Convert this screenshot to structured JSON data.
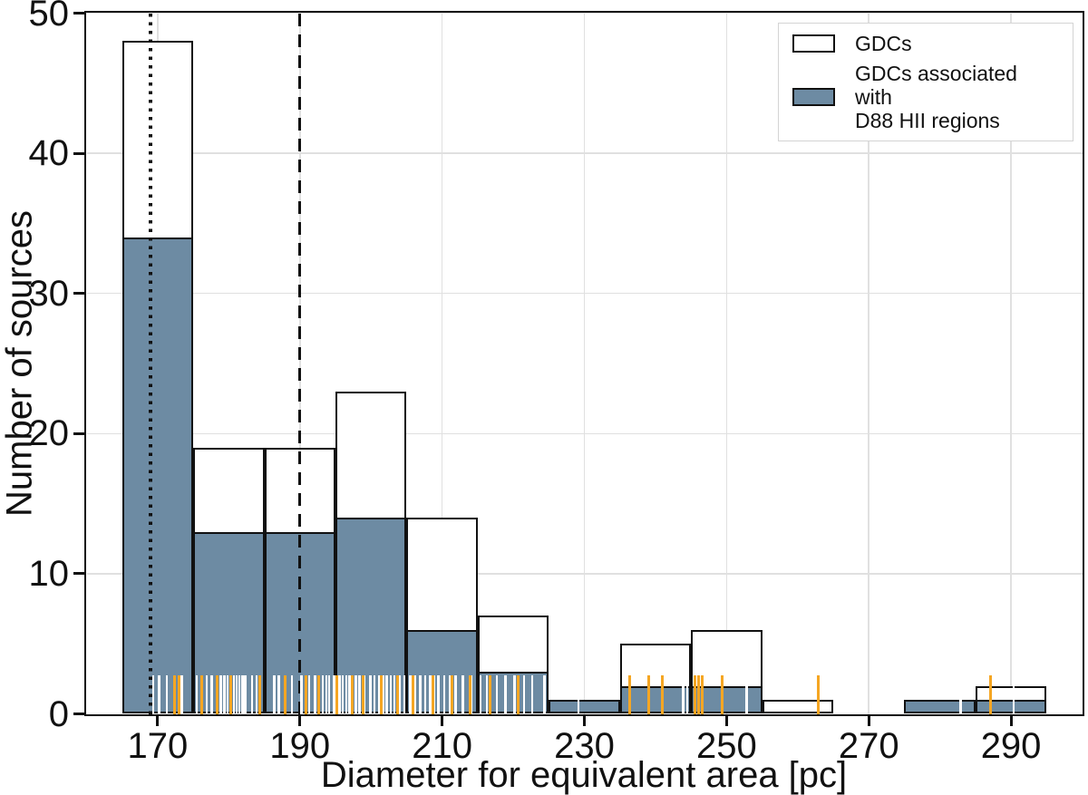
{
  "figure": {
    "xlabel": "Diameter for equivalent area [pc]",
    "ylabel": "Number of sources"
  },
  "legend": {
    "items": [
      {
        "name": "GDCs",
        "lines": [
          "GDCs"
        ],
        "swatch_color": "#ffffff"
      },
      {
        "name": "GDCs associated with D88 HII regions",
        "lines": [
          "GDCs associated with",
          "D88 HII regions"
        ],
        "swatch_color": "#6d8ba3"
      }
    ]
  },
  "colors": {
    "gdc_fill": "#ffffff",
    "hii_fill": "#6d8ba3",
    "edge": "#111111",
    "grid": "#e0e0e0",
    "rug_white": "#ffffff",
    "rug_orange": "#f5a623",
    "legend_border": "#d4d4d4"
  },
  "chart_data": {
    "type": "bar",
    "subtype": "histogram",
    "title": "",
    "xlabel": "Diameter for equivalent area [pc]",
    "ylabel": "Number of sources",
    "xlim": [
      160,
      300
    ],
    "ylim": [
      0,
      50
    ],
    "xticks": [
      170,
      190,
      210,
      230,
      250,
      270,
      290
    ],
    "yticks": [
      0,
      10,
      20,
      30,
      40,
      50
    ],
    "grid": true,
    "legend_position": "upper right",
    "bin_width": 10,
    "bin_left_edges": [
      165,
      175,
      185,
      195,
      205,
      215,
      225,
      235,
      245,
      255,
      265,
      275,
      285
    ],
    "series": [
      {
        "name": "GDCs",
        "values": [
          48,
          19,
          19,
          23,
          14,
          7,
          1,
          5,
          6,
          1,
          0,
          1,
          2
        ],
        "fill": "#ffffff"
      },
      {
        "name": "GDCs associated with D88 HII regions",
        "values": [
          34,
          13,
          13,
          14,
          6,
          3,
          1,
          2,
          2,
          0,
          0,
          1,
          1
        ],
        "fill": "#6d8ba3"
      }
    ],
    "vlines": [
      {
        "x": 169,
        "style": "dotted",
        "color": "#111111"
      },
      {
        "x": 190,
        "style": "dashed",
        "color": "#111111"
      }
    ],
    "rug_white": [
      169.4,
      170.2,
      171.3,
      173.4,
      175.5,
      176.9,
      177.6,
      178.9,
      179.4,
      179.8,
      180.7,
      181.1,
      181.5,
      181.9,
      182.3,
      183.3,
      183.9,
      186.4,
      187.0,
      188.9,
      190.2,
      191.3,
      192.1,
      193.2,
      193.7,
      194.1,
      194.8,
      195.6,
      196.0,
      196.5,
      197.0,
      197.9,
      198.4,
      199.1,
      199.9,
      200.5,
      201.1,
      201.7,
      202.2,
      202.8,
      203.3,
      204.0,
      204.7,
      205.5,
      206.2,
      206.9,
      207.6,
      208.3,
      208.9,
      209.5,
      210.3,
      211.1,
      211.9,
      212.9,
      214.1,
      215.4,
      216.3,
      217.7,
      218.9,
      220.2,
      221.5,
      222.7,
      224.4,
      229.2,
      243.9,
      244.5,
      252.8,
      282.9,
      290.4
    ],
    "rug_orange": [
      172.4,
      173.0,
      176.2,
      178.4,
      180.3,
      184.3,
      187.9,
      190.8,
      192.7,
      195.2,
      197.4,
      198.9,
      201.4,
      203.7,
      205.9,
      208.7,
      211.4,
      213.9,
      216.7,
      220.7,
      236.4,
      239.0,
      241.0,
      245.6,
      246.1,
      246.6,
      249.4,
      262.9,
      287.1
    ]
  }
}
